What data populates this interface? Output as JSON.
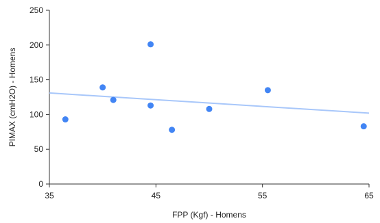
{
  "chart_data": {
    "type": "scatter",
    "title": "",
    "xlabel": "FPP (Kgf) - Homens",
    "ylabel": "PIMAX (cmH2O) - Homens",
    "xlim": [
      35,
      65
    ],
    "ylim": [
      0,
      250
    ],
    "x_ticks": [
      35,
      45,
      55,
      65
    ],
    "y_ticks": [
      0,
      50,
      100,
      150,
      200,
      250
    ],
    "grid": false,
    "legend": "none",
    "series": [
      {
        "color": "#4285f4",
        "points": [
          {
            "x": 36.5,
            "y": 93
          },
          {
            "x": 40.0,
            "y": 139
          },
          {
            "x": 41.0,
            "y": 121
          },
          {
            "x": 44.5,
            "y": 201
          },
          {
            "x": 44.5,
            "y": 113
          },
          {
            "x": 46.5,
            "y": 78
          },
          {
            "x": 50.0,
            "y": 108
          },
          {
            "x": 55.5,
            "y": 135
          },
          {
            "x": 64.5,
            "y": 83
          }
        ]
      }
    ],
    "trendline": {
      "type": "linear",
      "color": "#a8c7fa",
      "points": [
        {
          "x": 35,
          "y": 131
        },
        {
          "x": 65,
          "y": 102
        }
      ]
    },
    "colors": {
      "axis": "#333333",
      "text": "#222222"
    }
  }
}
